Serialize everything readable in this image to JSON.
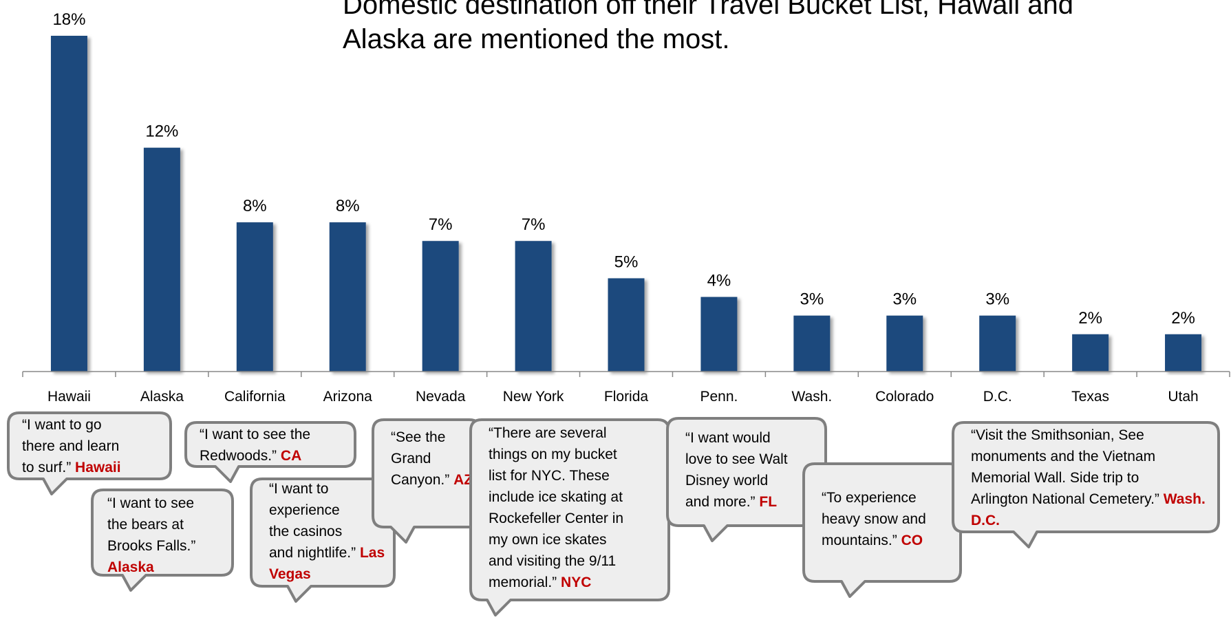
{
  "headline": {
    "line1": "Domestic destination off their Travel Bucket List, Hawaii and",
    "line2": "Alaska are mentioned the most."
  },
  "colors": {
    "bar": "#1f497d",
    "axis": "#888888",
    "bubble_fill": "#eeeeee",
    "bubble_stroke": "#7f7f7f",
    "source": "#c00000"
  },
  "chart_data": {
    "type": "bar",
    "categories": [
      "Hawaii",
      "Alaska",
      "California",
      "Arizona",
      "Nevada",
      "New York",
      "Florida",
      "Penn.",
      "Wash.",
      "Colorado",
      "D.C.",
      "Texas",
      "Utah"
    ],
    "values": [
      18,
      12,
      8,
      8,
      7,
      7,
      5,
      4,
      3,
      3,
      3,
      2,
      2
    ],
    "data_labels": [
      "18%",
      "12%",
      "8%",
      "8%",
      "7%",
      "7%",
      "5%",
      "4%",
      "3%",
      "3%",
      "3%",
      "2%",
      "2%"
    ],
    "unit": "%",
    "ylim": [
      0,
      20
    ],
    "grid": false,
    "legend": "none"
  },
  "quotes": [
    {
      "lines": [
        "“I want to go",
        "there and learn",
        "to surf.”"
      ],
      "source": "Hawaii"
    },
    {
      "lines": [
        "“I want to see",
        "the bears at",
        "Brooks Falls.”"
      ],
      "source": "Alaska"
    },
    {
      "lines": [
        "“I want to see the",
        "Redwoods.”"
      ],
      "source": "CA"
    },
    {
      "lines": [
        "“I want to",
        "experience",
        "the casinos",
        "and nightlife.”"
      ],
      "source": "Las Vegas"
    },
    {
      "lines": [
        "“See the",
        "Grand",
        "Canyon.”"
      ],
      "source": "AZ"
    },
    {
      "lines": [
        "“There are several",
        "things on my bucket",
        "list for NYC. These",
        "include ice skating at",
        "Rockefeller Center in",
        "my own ice skates",
        "and visiting the 9/11",
        "memorial.”"
      ],
      "source": "NYC"
    },
    {
      "lines": [
        "“I want would",
        "love to see Walt",
        "Disney world",
        "and more.”"
      ],
      "source": "FL"
    },
    {
      "lines": [
        "“To experience",
        "heavy snow and",
        "mountains.”"
      ],
      "source": "CO"
    },
    {
      "lines": [
        "“Visit the Smithsonian, See",
        "monuments and the Vietnam",
        "Memorial Wall. Side trip to",
        "Arlington National Cemetery.”"
      ],
      "source": "Wash. D.C."
    }
  ]
}
